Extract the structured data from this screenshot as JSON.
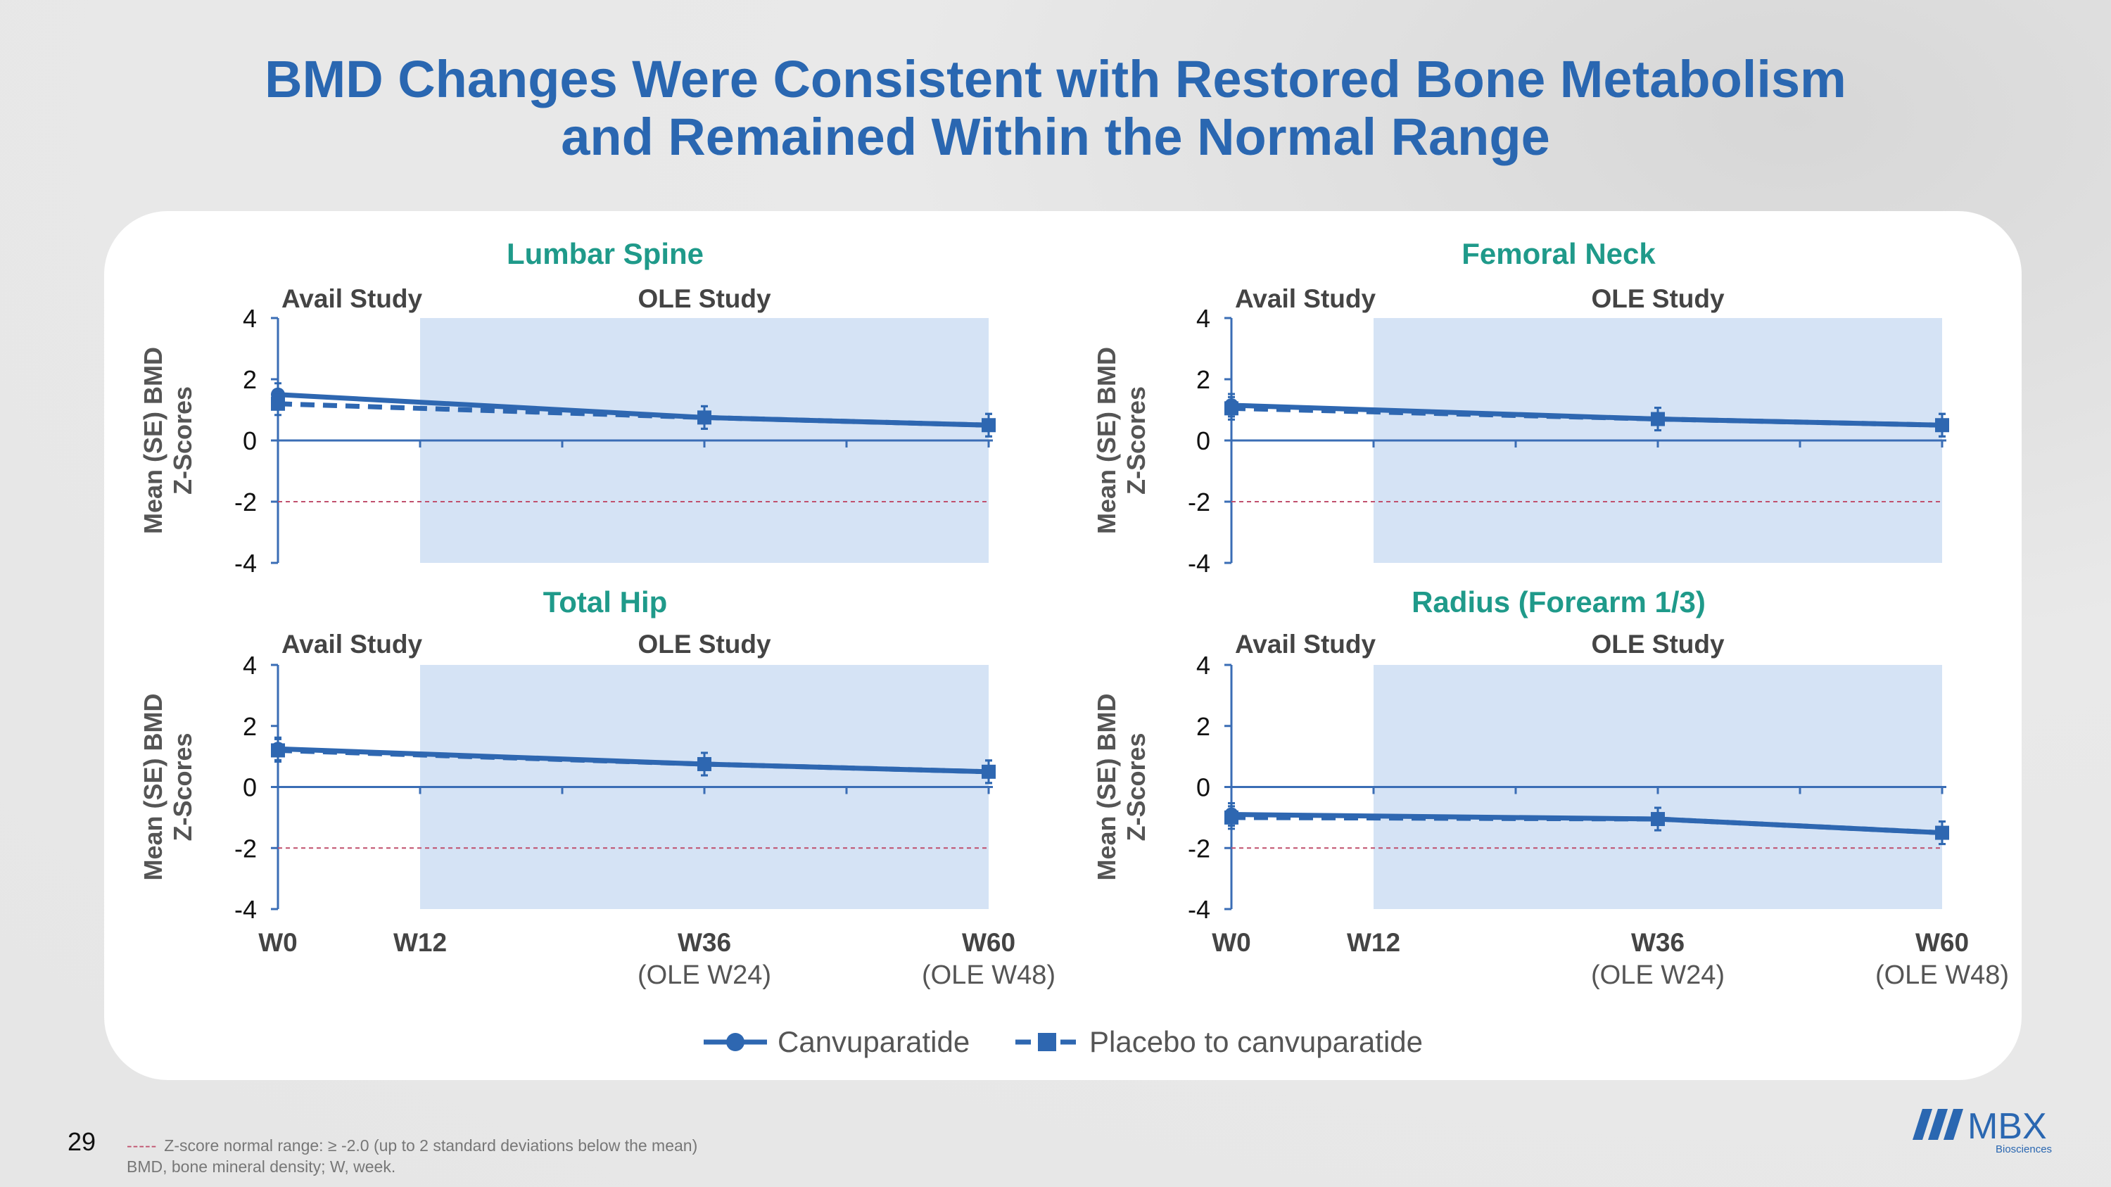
{
  "slide": {
    "title_line1": "BMD Changes Were Consistent with Restored Bone Metabolism",
    "title_line2": "and Remained Within the Normal Range",
    "page_number": "29",
    "footnote_line1": "Z-score normal range: ≥ -2.0 (up to 2 standard deviations below the mean)",
    "footnote_line2": "BMD, bone mineral density; W, week.",
    "logo_text": "MBX",
    "logo_subtext": "Biosciences"
  },
  "colors": {
    "title": "#2a67b1",
    "panel_title": "#1f9a8a",
    "series": "#2e67b1",
    "ole_shade": "#d5e3f5",
    "normal_range_line": "#c0506d",
    "axis": "#3a6db5"
  },
  "legend": {
    "position": "bottom",
    "items": [
      "Canvuparatide",
      "Placebo to canvuparatide"
    ]
  },
  "chart_data": [
    {
      "type": "line",
      "title": "Lumbar Spine",
      "region_labels": [
        "Avail Study",
        "OLE Study"
      ],
      "shaded_region": {
        "from": 12,
        "to": 60,
        "label": "OLE Study"
      },
      "ylabel": [
        "Mean (SE) BMD",
        "Z-Scores"
      ],
      "ylim": [
        -4,
        4
      ],
      "yticks": [
        "4",
        "2",
        "0",
        "-2",
        "-4"
      ],
      "normal_range_threshold": -2,
      "x": [
        0,
        12,
        36,
        60
      ],
      "series": [
        {
          "name": "Canvuparatide",
          "style": "solid",
          "marker": "circle",
          "x": [
            0,
            36,
            60
          ],
          "values": [
            1.5,
            0.75,
            0.5
          ]
        },
        {
          "name": "Placebo to canvuparatide",
          "style": "dashed",
          "marker": "square",
          "x": [
            0,
            36,
            60
          ],
          "values": [
            1.2,
            0.75,
            0.5
          ]
        }
      ]
    },
    {
      "type": "line",
      "title": "Femoral Neck",
      "region_labels": [
        "Avail Study",
        "OLE Study"
      ],
      "shaded_region": {
        "from": 12,
        "to": 60,
        "label": "OLE Study"
      },
      "ylabel": [
        "Mean (SE) BMD",
        "Z-Scores"
      ],
      "ylim": [
        -4,
        4
      ],
      "yticks": [
        "4",
        "2",
        "0",
        "-2",
        "-4"
      ],
      "normal_range_threshold": -2,
      "x": [
        0,
        12,
        36,
        60
      ],
      "series": [
        {
          "name": "Canvuparatide",
          "style": "solid",
          "marker": "circle",
          "x": [
            0,
            36,
            60
          ],
          "values": [
            1.15,
            0.7,
            0.5
          ]
        },
        {
          "name": "Placebo to canvuparatide",
          "style": "dashed",
          "marker": "square",
          "x": [
            0,
            36,
            60
          ],
          "values": [
            1.05,
            0.7,
            0.5
          ]
        }
      ]
    },
    {
      "type": "line",
      "title": "Total Hip",
      "region_labels": [
        "Avail Study",
        "OLE Study"
      ],
      "shaded_region": {
        "from": 12,
        "to": 60,
        "label": "OLE Study"
      },
      "ylabel": [
        "Mean (SE) BMD",
        "Z-Scores"
      ],
      "ylim": [
        -4,
        4
      ],
      "yticks": [
        "4",
        "2",
        "0",
        "-2",
        "-4"
      ],
      "normal_range_threshold": -2,
      "x": [
        0,
        12,
        36,
        60
      ],
      "xtick_labels": [
        "W0",
        "W12",
        "W36",
        "W60"
      ],
      "xtick_sublabels": [
        "",
        "",
        "(OLE W24)",
        "(OLE W48)"
      ],
      "series": [
        {
          "name": "Canvuparatide",
          "style": "solid",
          "marker": "circle",
          "x": [
            0,
            36,
            60
          ],
          "values": [
            1.25,
            0.75,
            0.5
          ]
        },
        {
          "name": "Placebo to canvuparatide",
          "style": "dashed",
          "marker": "square",
          "x": [
            0,
            36,
            60
          ],
          "values": [
            1.2,
            0.75,
            0.5
          ]
        }
      ]
    },
    {
      "type": "line",
      "title": "Radius (Forearm 1/3)",
      "region_labels": [
        "Avail Study",
        "OLE Study"
      ],
      "shaded_region": {
        "from": 12,
        "to": 60,
        "label": "OLE Study"
      },
      "ylabel": [
        "Mean (SE) BMD",
        "Z-Scores"
      ],
      "ylim": [
        -4,
        4
      ],
      "yticks": [
        "4",
        "2",
        "0",
        "-2",
        "-4"
      ],
      "normal_range_threshold": -2,
      "x": [
        0,
        12,
        36,
        60
      ],
      "xtick_labels": [
        "W0",
        "W12",
        "W36",
        "W60"
      ],
      "xtick_sublabels": [
        "",
        "",
        "(OLE W24)",
        "(OLE W48)"
      ],
      "series": [
        {
          "name": "Canvuparatide",
          "style": "solid",
          "marker": "circle",
          "x": [
            0,
            36,
            60
          ],
          "values": [
            -0.9,
            -1.05,
            -1.5
          ]
        },
        {
          "name": "Placebo to canvuparatide",
          "style": "dashed",
          "marker": "square",
          "x": [
            0,
            36,
            60
          ],
          "values": [
            -1.0,
            -1.05,
            -1.5
          ]
        }
      ]
    }
  ]
}
